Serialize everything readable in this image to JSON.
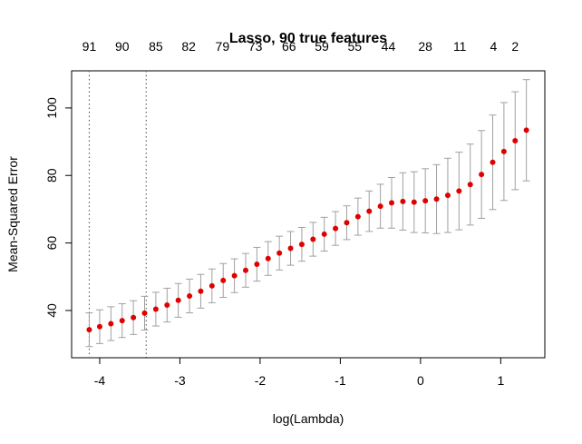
{
  "chart_data": {
    "type": "scatter",
    "title": "Lasso, 90 true features",
    "xlabel": "log(Lambda)",
    "ylabel": "Mean-Squared Error",
    "xlim": [
      -4.35,
      1.55
    ],
    "ylim": [
      26,
      111
    ],
    "x_ticks": [
      -4,
      -3,
      -2,
      -1,
      0,
      1
    ],
    "y_ticks": [
      40,
      60,
      80,
      100
    ],
    "top_axis": {
      "ticks": [
        {
          "x": -4.13,
          "label": "91"
        },
        {
          "x": -3.72,
          "label": "90"
        },
        {
          "x": -3.3,
          "label": "85"
        },
        {
          "x": -2.89,
          "label": "82"
        },
        {
          "x": -2.47,
          "label": "79"
        },
        {
          "x": -2.06,
          "label": "73"
        },
        {
          "x": -1.64,
          "label": "66"
        },
        {
          "x": -1.23,
          "label": "59"
        },
        {
          "x": -0.82,
          "label": "55"
        },
        {
          "x": -0.4,
          "label": "44"
        },
        {
          "x": 0.06,
          "label": "28"
        },
        {
          "x": 0.49,
          "label": "11"
        },
        {
          "x": 0.91,
          "label": "4"
        },
        {
          "x": 1.18,
          "label": "2"
        }
      ]
    },
    "reference_lines": [
      -4.13,
      -3.42
    ],
    "point_color": "#e00000",
    "errorbar_color": "#a0a0a0",
    "series": [
      {
        "x": [
          -4.13,
          -4.0,
          -3.86,
          -3.72,
          -3.58,
          -3.44,
          -3.3,
          -3.16,
          -3.02,
          -2.88,
          -2.74,
          -2.6,
          -2.46,
          -2.32,
          -2.18,
          -2.04,
          -1.9,
          -1.76,
          -1.62,
          -1.48,
          -1.34,
          -1.2,
          -1.06,
          -0.92,
          -0.78,
          -0.64,
          -0.5,
          -0.36,
          -0.22,
          -0.08,
          0.06,
          0.2,
          0.34,
          0.48,
          0.62,
          0.76,
          0.9,
          1.04,
          1.18,
          1.32
        ],
        "y": [
          34.3,
          35.2,
          36.1,
          37.0,
          37.9,
          39.2,
          40.4,
          41.6,
          43.0,
          44.3,
          45.7,
          47.3,
          48.9,
          50.3,
          51.9,
          53.7,
          55.4,
          57.0,
          58.4,
          59.6,
          61.1,
          62.6,
          64.3,
          66.0,
          67.8,
          69.4,
          70.9,
          71.9,
          72.3,
          72.1,
          72.5,
          73.0,
          74.1,
          75.4,
          77.3,
          80.3,
          83.9,
          87.1,
          90.3,
          93.4
        ],
        "lower": [
          29.3,
          30.2,
          31.1,
          32.0,
          32.9,
          34.2,
          35.4,
          36.6,
          38.0,
          39.3,
          40.7,
          42.3,
          43.9,
          45.3,
          46.9,
          48.7,
          50.4,
          52.0,
          53.4,
          54.6,
          56.1,
          57.6,
          59.3,
          61.0,
          62.3,
          63.4,
          64.4,
          64.4,
          63.8,
          63.1,
          63.0,
          62.8,
          63.1,
          63.9,
          65.3,
          67.3,
          69.9,
          72.6,
          75.8,
          78.4
        ],
        "upper": [
          39.3,
          40.2,
          41.1,
          42.0,
          42.9,
          44.2,
          45.4,
          46.6,
          48.0,
          49.3,
          50.7,
          52.3,
          53.9,
          55.3,
          56.9,
          58.7,
          60.4,
          62.0,
          63.4,
          64.6,
          66.1,
          67.6,
          69.3,
          71.0,
          73.3,
          75.4,
          77.4,
          79.4,
          80.8,
          81.1,
          82.0,
          83.2,
          85.1,
          86.9,
          89.3,
          93.3,
          97.9,
          101.6,
          104.8,
          108.4
        ]
      }
    ]
  }
}
